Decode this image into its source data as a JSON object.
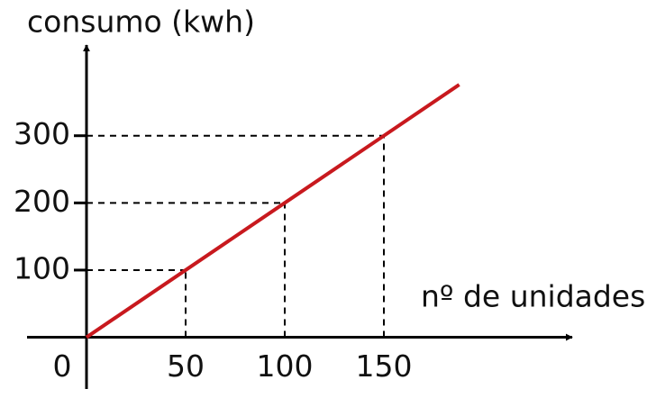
{
  "chart_data": {
    "type": "line",
    "y_label": "consumo (kwh)",
    "x_label": "nº de unidades",
    "x": [
      0,
      50,
      100,
      150,
      188
    ],
    "series": [
      {
        "name": "consumo",
        "color": "#c8191e",
        "values": [
          0,
          100,
          200,
          300,
          376
        ]
      }
    ],
    "xlim": [
      -30,
      245
    ],
    "ylim": [
      -77,
      435
    ],
    "xticks": [
      50,
      100,
      150
    ],
    "yticks": [
      0,
      100,
      200,
      300
    ],
    "guides": [
      50,
      100,
      150
    ]
  }
}
